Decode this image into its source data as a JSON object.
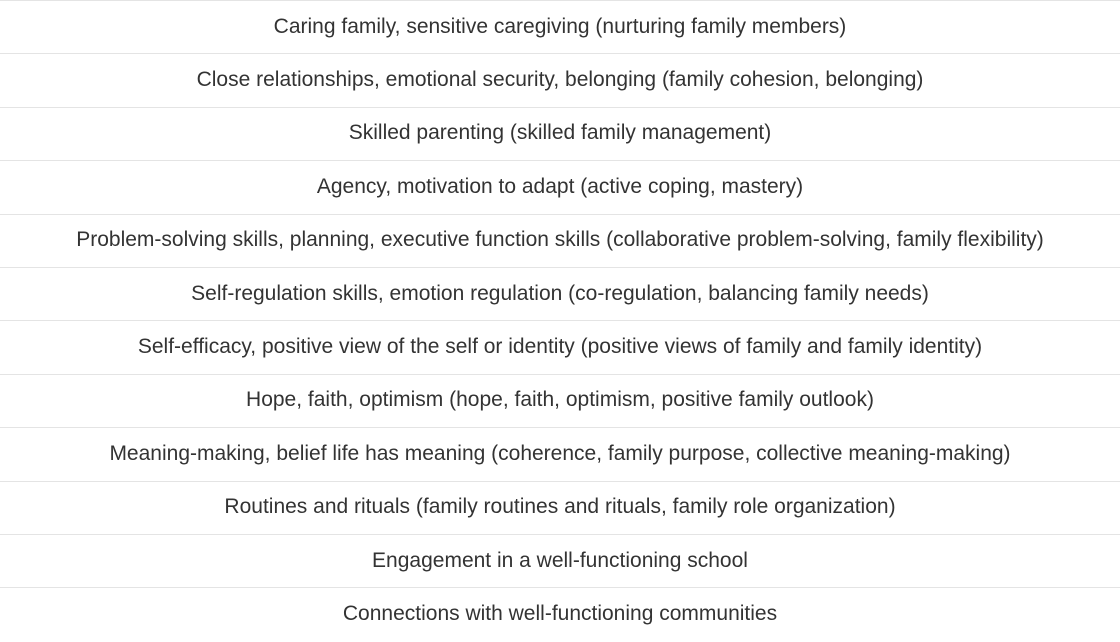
{
  "table": {
    "rows": [
      "Caring family, sensitive caregiving (nurturing family members)",
      "Close relationships, emotional security, belonging (family cohesion, belonging)",
      "Skilled parenting (skilled family management)",
      "Agency, motivation to adapt (active coping, mastery)",
      "Problem-solving skills, planning, executive function skills (collaborative problem-solving, family flexibility)",
      "Self-regulation skills, emotion regulation (co-regulation, balancing family needs)",
      "Self-efficacy, positive view of the self or identity (positive views of family and family identity)",
      "Hope, faith, optimism (hope, faith, optimism, positive family outlook)",
      "Meaning-making, belief life has meaning (coherence, family purpose, collective meaning-making)",
      "Routines and rituals (family routines and rituals, family role organization)",
      "Engagement in a well-functioning school",
      "Connections with well-functioning communities"
    ]
  },
  "colors": {
    "text": "#333333",
    "border": "#e4e4e4",
    "background": "#ffffff"
  }
}
